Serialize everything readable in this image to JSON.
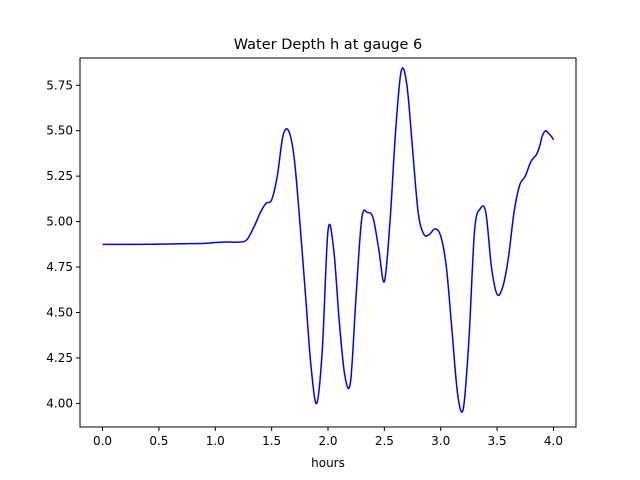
{
  "chart_data": {
    "type": "line",
    "title": "Water Depth h at gauge 6",
    "xlabel": "hours",
    "ylabel": "",
    "xlim": [
      -0.2,
      4.2
    ],
    "ylim": [
      3.87,
      5.9
    ],
    "x_ticks": [
      0.0,
      0.5,
      1.0,
      1.5,
      2.0,
      2.5,
      3.0,
      3.5,
      4.0
    ],
    "x_tick_labels": [
      "0.0",
      "0.5",
      "1.0",
      "1.5",
      "2.0",
      "2.5",
      "3.0",
      "3.5",
      "4.0"
    ],
    "y_ticks": [
      4.0,
      4.25,
      4.5,
      4.75,
      5.0,
      5.25,
      5.5,
      5.75
    ],
    "y_tick_labels": [
      "4.00",
      "4.25",
      "4.50",
      "4.75",
      "5.00",
      "5.25",
      "5.50",
      "5.75"
    ],
    "grid": false,
    "legend": "none",
    "series": [
      {
        "color": "#0000ff",
        "x": [
          0.0,
          0.3,
          0.5,
          0.7,
          0.9,
          1.0,
          1.1,
          1.2,
          1.28,
          1.35,
          1.4,
          1.45,
          1.5,
          1.55,
          1.6,
          1.65,
          1.7,
          1.75,
          1.8,
          1.85,
          1.9,
          1.95,
          2.0,
          2.05,
          2.1,
          2.15,
          2.2,
          2.25,
          2.3,
          2.35,
          2.4,
          2.45,
          2.5,
          2.55,
          2.6,
          2.65,
          2.7,
          2.75,
          2.8,
          2.85,
          2.9,
          2.95,
          3.0,
          3.05,
          3.1,
          3.15,
          3.2,
          3.25,
          3.3,
          3.35,
          3.4,
          3.45,
          3.5,
          3.55,
          3.6,
          3.65,
          3.7,
          3.75,
          3.8,
          3.85,
          3.88,
          3.9,
          3.93,
          3.95,
          3.98,
          4.0
        ],
        "y": [
          4.875,
          4.875,
          4.876,
          4.878,
          4.88,
          4.885,
          4.888,
          4.887,
          4.9,
          4.98,
          5.05,
          5.1,
          5.12,
          5.25,
          5.47,
          5.5,
          5.35,
          5.0,
          4.6,
          4.2,
          4.0,
          4.3,
          4.95,
          4.85,
          4.45,
          4.15,
          4.12,
          4.6,
          5.02,
          5.05,
          5.02,
          4.85,
          4.67,
          5.0,
          5.5,
          5.83,
          5.75,
          5.4,
          5.05,
          4.93,
          4.93,
          4.96,
          4.92,
          4.75,
          4.4,
          4.05,
          3.97,
          4.35,
          4.95,
          5.07,
          5.05,
          4.75,
          4.6,
          4.64,
          4.8,
          5.05,
          5.2,
          5.25,
          5.33,
          5.37,
          5.42,
          5.47,
          5.5,
          5.49,
          5.47,
          5.45
        ]
      }
    ]
  }
}
